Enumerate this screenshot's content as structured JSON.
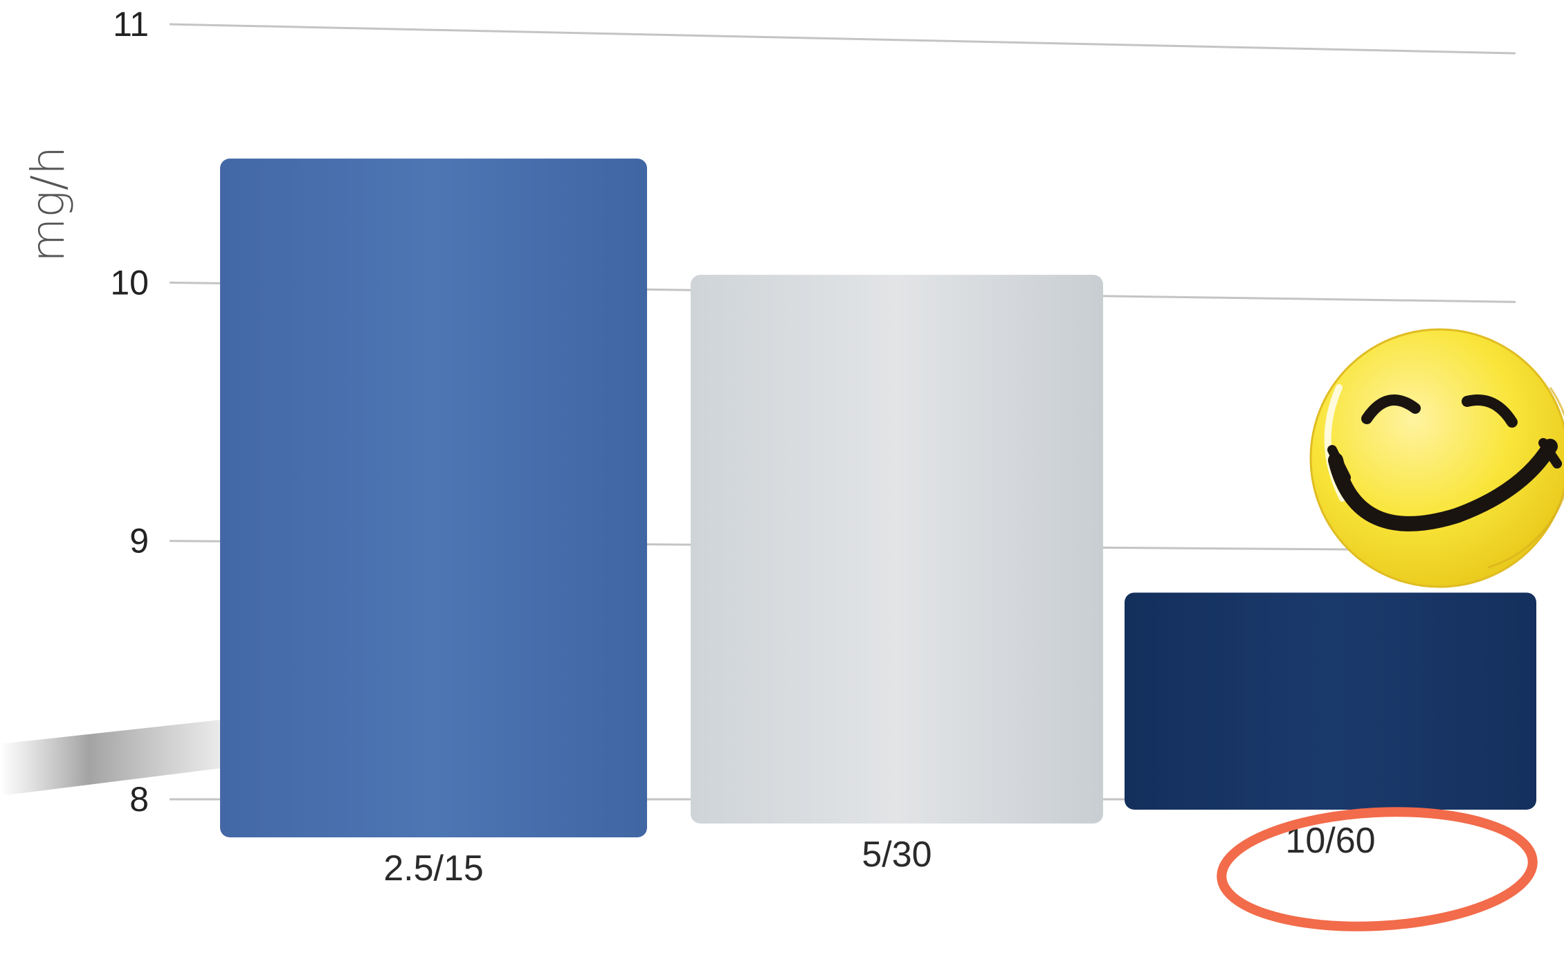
{
  "chart_data": {
    "type": "bar",
    "title": "",
    "xlabel": "",
    "ylabel": "mg/h",
    "categories": [
      "2.5/15",
      "5/30",
      "10/60"
    ],
    "values": [
      10.48,
      10.03,
      8.8
    ],
    "ylim": [
      8,
      11
    ],
    "yticks": [
      "8",
      "9",
      "10",
      "11"
    ],
    "grid": true,
    "colors": [
      "#4a73b0",
      "#dcdfe2",
      "#1a3a6b"
    ],
    "annotations": {
      "smiley_icon": "smiley-face-icon",
      "highlight": "10/60",
      "highlight_color": "#f26b4a",
      "smiley_color": "#f7e23a"
    }
  }
}
